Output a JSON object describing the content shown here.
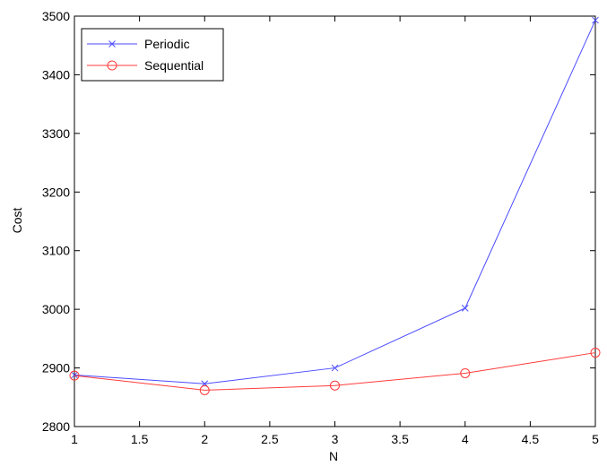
{
  "chart_data": {
    "type": "line",
    "title": "",
    "xlabel": "N",
    "ylabel": "Cost",
    "x": [
      1,
      2,
      3,
      4,
      5
    ],
    "xlim": [
      1,
      5
    ],
    "ylim": [
      2800,
      3500
    ],
    "xticks": [
      1,
      1.5,
      2,
      2.5,
      3,
      3.5,
      4,
      4.5,
      5
    ],
    "yticks": [
      2800,
      2900,
      3000,
      3100,
      3200,
      3300,
      3400,
      3500
    ],
    "grid": false,
    "legend_position": "top-left",
    "series": [
      {
        "name": "Periodic",
        "values": [
          2888,
          2873,
          2900,
          3002,
          3493
        ],
        "color": "#4b4bff",
        "marker": "x"
      },
      {
        "name": "Sequential",
        "values": [
          2887,
          2862,
          2870,
          2891,
          2926
        ],
        "color": "#ff3b3b",
        "marker": "circle"
      }
    ]
  }
}
